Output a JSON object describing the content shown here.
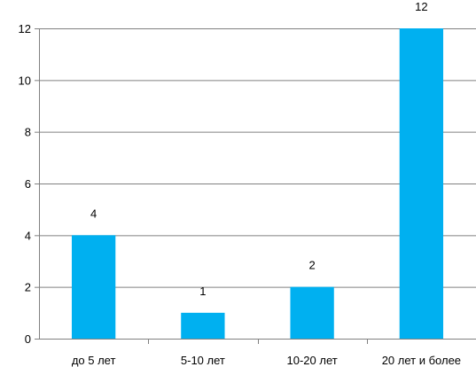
{
  "chart_data": {
    "type": "bar",
    "categories": [
      "до 5 лет",
      "5-10 лет",
      "10-20 лет",
      "20 лет и более"
    ],
    "values": [
      4,
      1,
      2,
      12
    ],
    "data_labels": [
      "4",
      "1",
      "2",
      "12"
    ],
    "y_ticks": [
      "0",
      "2",
      "4",
      "6",
      "8",
      "10",
      "12"
    ],
    "ylim": [
      0,
      12
    ],
    "title": "",
    "xlabel": "",
    "ylabel": "",
    "grid": true,
    "legend": "none",
    "bar_color": "#00B0F0",
    "grid_color": "#808080",
    "axis_color": "#808080"
  }
}
